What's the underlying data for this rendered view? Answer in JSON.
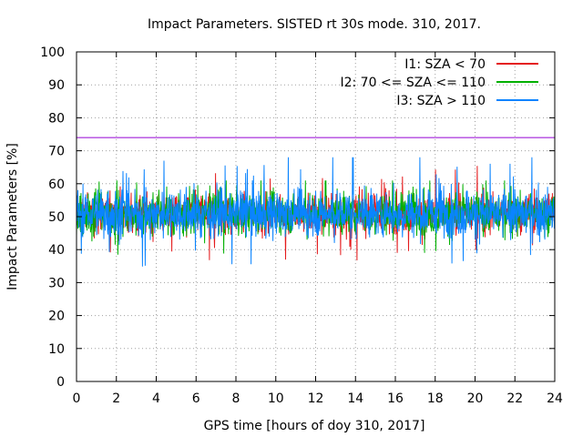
{
  "chart_data": {
    "type": "line",
    "title": "Impact Parameters. SISTED rt 30s mode. 310, 2017.",
    "xlabel": "GPS time [hours of doy 310, 2017]",
    "ylabel": "Impact Parameters [%]",
    "xlim": [
      0,
      24
    ],
    "ylim": [
      0,
      100
    ],
    "xticks": [
      0,
      2,
      4,
      6,
      8,
      10,
      12,
      14,
      16,
      18,
      20,
      22,
      24
    ],
    "yticks": [
      0,
      10,
      20,
      30,
      40,
      50,
      60,
      70,
      80,
      90,
      100
    ],
    "grid": true,
    "legend_position": "top-right",
    "reference_line": {
      "y": 74,
      "color": "#9400d3"
    },
    "series": [
      {
        "name": "I1: SZA < 70",
        "color": "#e41a1c",
        "mean": 51,
        "noise_range": [
          36,
          66
        ]
      },
      {
        "name": "I2: 70 <= SZA <= 110",
        "color": "#00b000",
        "mean": 51,
        "noise_range": [
          36,
          61
        ]
      },
      {
        "name": "I3: SZA > 110",
        "color": "#0a84ff",
        "mean": 51,
        "noise_range": [
          32,
          68
        ]
      }
    ]
  }
}
